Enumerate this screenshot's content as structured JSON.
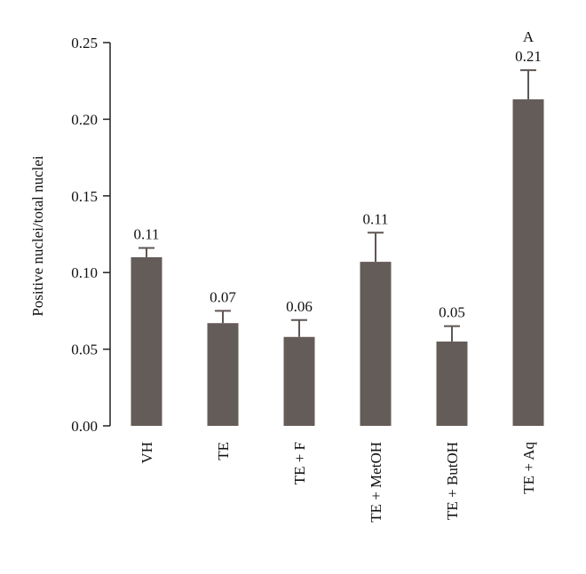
{
  "chart_data": {
    "type": "bar",
    "title": "",
    "xlabel": "",
    "ylabel": "Positive nuclei/total nuclei",
    "ylim": [
      0,
      0.25
    ],
    "yticks": [
      "0.00",
      "0.05",
      "0.10",
      "0.15",
      "0.20",
      "0.25"
    ],
    "yticks_values": [
      0,
      0.05,
      0.1,
      0.15,
      0.2,
      0.25
    ],
    "grid": false,
    "bar_color": "#645c58",
    "categories": [
      "VH",
      "TE",
      "TE + F",
      "TE + MetOH",
      "TE + ButOH",
      "TE + Aq"
    ],
    "values": [
      0.11,
      0.067,
      0.058,
      0.107,
      0.055,
      0.213
    ],
    "errors": [
      0.006,
      0.008,
      0.011,
      0.019,
      0.01,
      0.019
    ],
    "data_labels": [
      "0.11",
      "0.07",
      "0.06",
      "0.11",
      "0.05",
      "0.21"
    ],
    "significance": [
      "",
      "",
      "",
      "",
      "",
      "A"
    ]
  }
}
